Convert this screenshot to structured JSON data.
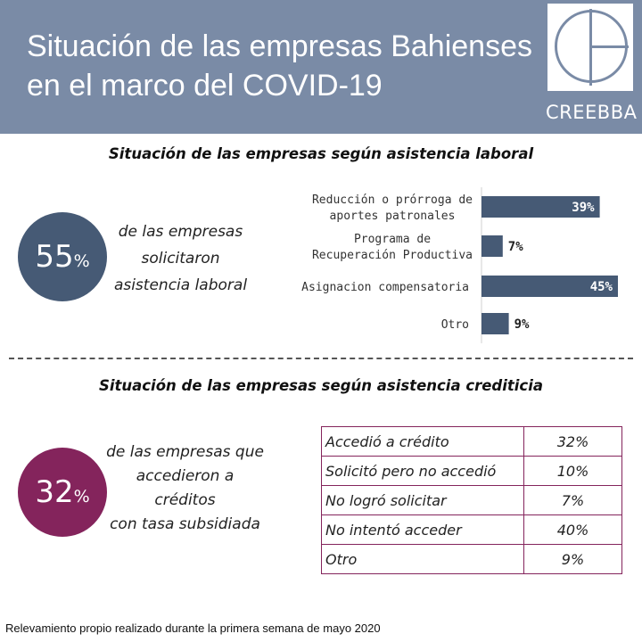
{
  "header": {
    "title_line1": "Situación de las empresas Bahienses",
    "title_line2": "en el marco del COVID-19",
    "logo_text": "CREEBBA",
    "background_color": "#7a8ba6"
  },
  "section1": {
    "title": "Situación de las empresas según asistencia laboral",
    "stat_value": "55",
    "stat_unit": "%",
    "stat_color": "#465a75",
    "caption_lines": [
      "de las empresas",
      "solicitaron",
      "asistencia laboral"
    ]
  },
  "section2": {
    "title": "Situación de las empresas según asistencia crediticia",
    "stat_value": "32",
    "stat_unit": "%",
    "stat_color": "#84245c",
    "caption_lines": [
      "de las empresas que",
      "accedieron a",
      "créditos",
      "con tasa subsidiada"
    ],
    "table_rows": [
      {
        "label": "Accedió a crédito",
        "value": "32%"
      },
      {
        "label": "Solicitó pero no accedió",
        "value": "10%"
      },
      {
        "label": "No logró solicitar",
        "value": "7%"
      },
      {
        "label": "No intentó acceder",
        "value": "40%"
      },
      {
        "label": "Otro",
        "value": "9%"
      }
    ]
  },
  "chart_data": {
    "type": "bar",
    "orientation": "horizontal",
    "title": "",
    "xlabel": "",
    "ylabel": "",
    "xlim": [
      0,
      45
    ],
    "grid": false,
    "bar_color": "#465a75",
    "categories": [
      [
        "Reducción o prórroga de",
        "aportes patronales"
      ],
      [
        "Programa de",
        "Recuperación Productiva"
      ],
      [
        "Asignacion compensatoria"
      ],
      [
        "Otro"
      ]
    ],
    "values": [
      39,
      7,
      45,
      9
    ],
    "value_labels": [
      "39%",
      "7%",
      "45%",
      "9%"
    ]
  },
  "footnote": "Relevamiento propio realizado durante la primera semana de mayo 2020"
}
